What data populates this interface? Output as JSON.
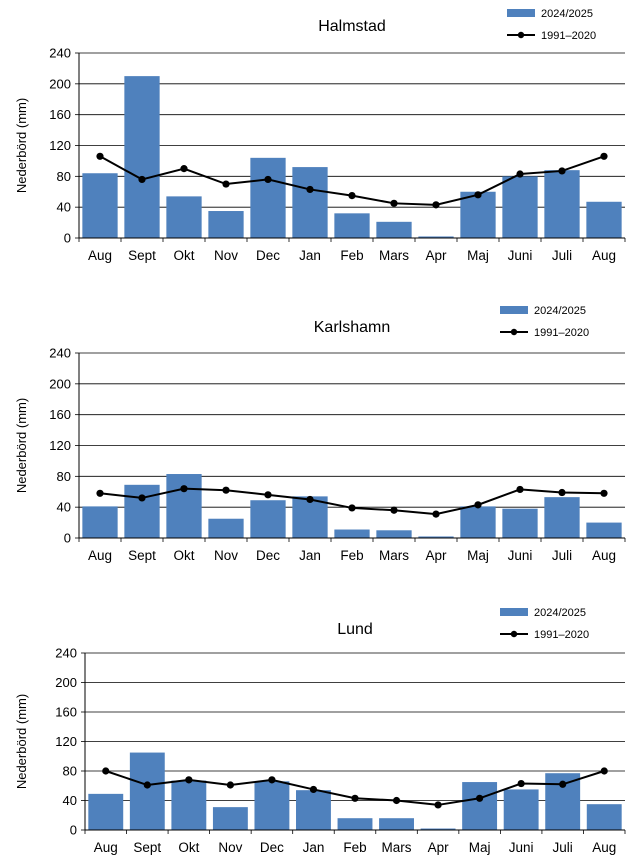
{
  "colors": {
    "bar": "#4f81bd",
    "line": "#000000",
    "grid": "#000000"
  },
  "chart_data": [
    {
      "type": "bar",
      "title": "Halmstad",
      "ylabel": "Nederbörd (mm)",
      "xlabel": "",
      "ylim": [
        0,
        240
      ],
      "yticks": [
        0,
        40,
        80,
        120,
        160,
        200,
        240
      ],
      "grid": true,
      "legend_position": "top-right",
      "categories": [
        "Aug",
        "Sept",
        "Okt",
        "Nov",
        "Dec",
        "Jan",
        "Feb",
        "Mars",
        "Apr",
        "Maj",
        "Juni",
        "Juli",
        "Aug"
      ],
      "series": [
        {
          "name": "2024/2025",
          "type": "bar",
          "values": [
            84,
            210,
            54,
            35,
            104,
            92,
            32,
            21,
            2,
            60,
            80,
            88,
            47
          ]
        },
        {
          "name": "1991–2020",
          "type": "line",
          "values": [
            106,
            76,
            90,
            70,
            76,
            63,
            55,
            45,
            43,
            56,
            83,
            87,
            106
          ]
        }
      ]
    },
    {
      "type": "bar",
      "title": "Karlshamn",
      "ylabel": "Nederbörd (mm)",
      "xlabel": "",
      "ylim": [
        0,
        240
      ],
      "yticks": [
        0,
        40,
        80,
        120,
        160,
        200,
        240
      ],
      "grid": true,
      "legend_position": "top-right",
      "categories": [
        "Aug",
        "Sept",
        "Okt",
        "Nov",
        "Dec",
        "Jan",
        "Feb",
        "Mars",
        "Apr",
        "Maj",
        "Juni",
        "Juli",
        "Aug"
      ],
      "series": [
        {
          "name": "2024/2025",
          "type": "bar",
          "values": [
            41,
            69,
            83,
            25,
            49,
            54,
            11,
            10,
            2,
            41,
            38,
            53,
            20
          ]
        },
        {
          "name": "1991–2020",
          "type": "line",
          "values": [
            58,
            52,
            64,
            62,
            56,
            50,
            39,
            36,
            31,
            43,
            63,
            59,
            58
          ]
        }
      ]
    },
    {
      "type": "bar",
      "title": "Lund",
      "ylabel": "Nederbörd (mm)",
      "xlabel": "",
      "ylim": [
        0,
        240
      ],
      "yticks": [
        0,
        40,
        80,
        120,
        160,
        200,
        240
      ],
      "grid": true,
      "legend_position": "top-right",
      "categories": [
        "Aug",
        "Sept",
        "Okt",
        "Nov",
        "Dec",
        "Jan",
        "Feb",
        "Mars",
        "Apr",
        "Maj",
        "Juni",
        "Juli",
        "Aug"
      ],
      "series": [
        {
          "name": "2024/2025",
          "type": "bar",
          "values": [
            49,
            105,
            67,
            31,
            66,
            54,
            16,
            16,
            2,
            65,
            55,
            77,
            35
          ]
        },
        {
          "name": "1991–2020",
          "type": "line",
          "values": [
            80,
            61,
            68,
            61,
            68,
            55,
            43,
            40,
            34,
            43,
            63,
            62,
            80
          ]
        }
      ]
    }
  ]
}
